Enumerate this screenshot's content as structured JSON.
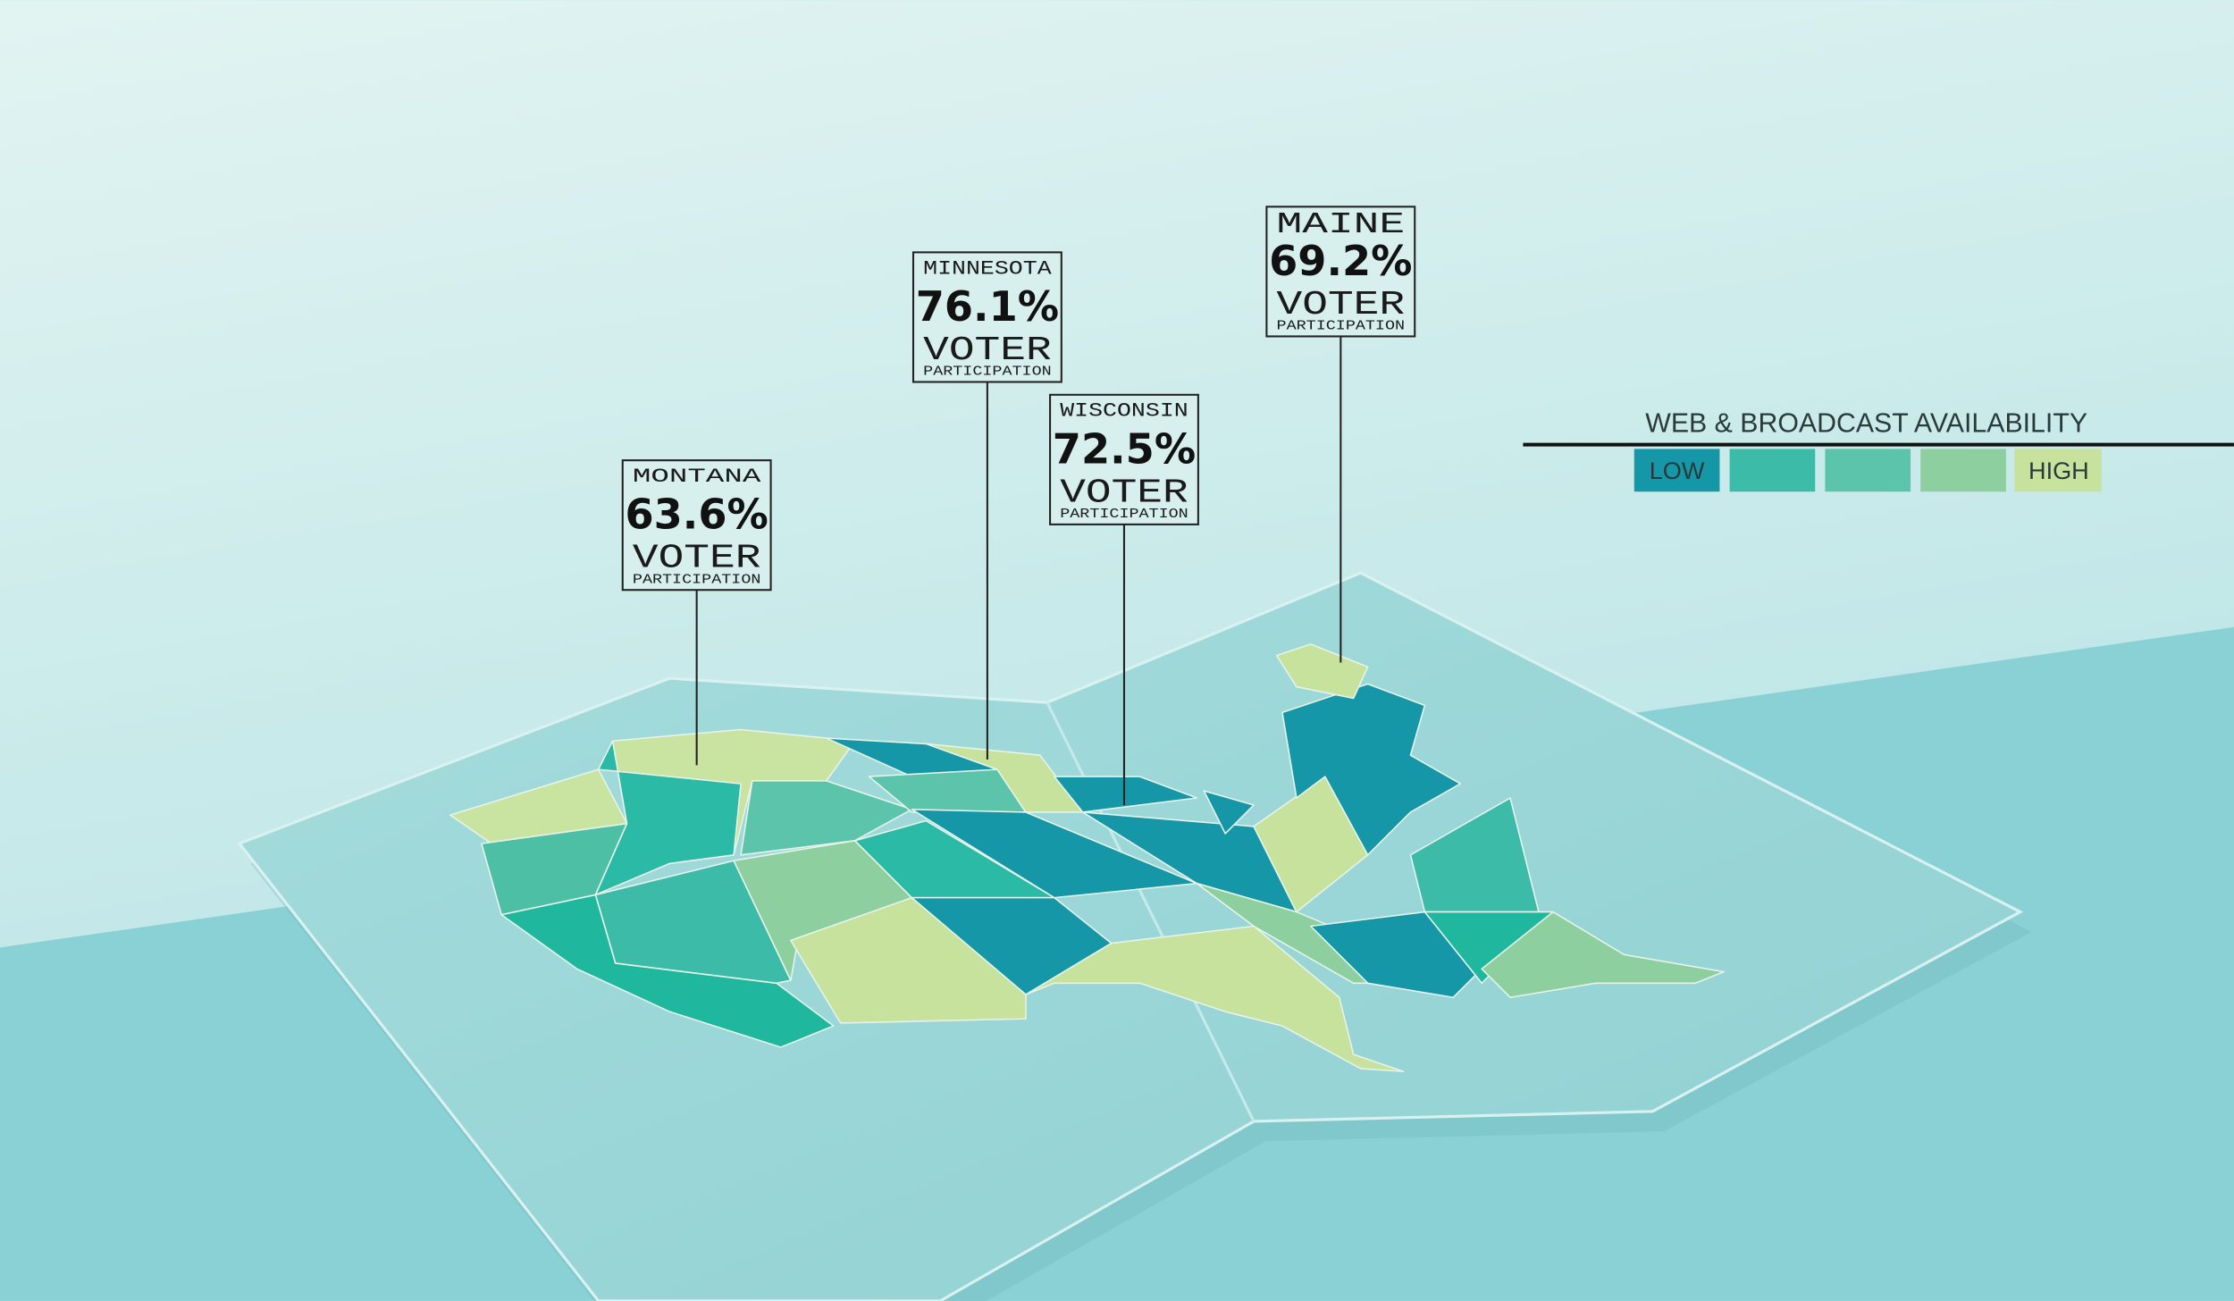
{
  "callouts": [
    {
      "state": "MONTANA",
      "value": "63.6%",
      "label": "VOTER",
      "sublabel": "PARTICIPATION"
    },
    {
      "state": "MINNESOTA",
      "value": "76.1%",
      "label": "VOTER",
      "sublabel": "PARTICIPATION"
    },
    {
      "state": "WISCONSIN",
      "value": "72.5%",
      "label": "VOTER",
      "sublabel": "PARTICIPATION"
    },
    {
      "state": "MAINE",
      "value": "69.2%",
      "label": "VOTER",
      "sublabel": "PARTICIPATION"
    }
  ],
  "legend": {
    "title": "WEB & BROADCAST AVAILABILITY",
    "low": "LOW",
    "high": "HIGH"
  }
}
